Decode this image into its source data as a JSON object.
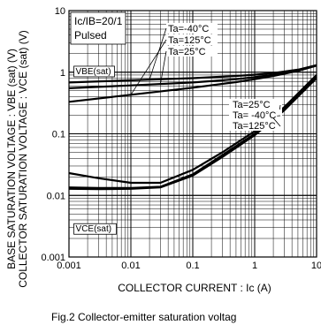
{
  "chart_data": {
    "type": "line",
    "caption": "Fig.2 Collector-emitter saturation voltag",
    "xlabel": "COLLECTOR  CURRENT : Ic (A)",
    "ylabel_line1": "COLLECTOR  SATURATION  VOLTAGE : VCE (sat) (V)",
    "ylabel_line2": "BASE  SATURATION  VOLTAGE : VBE (sat) (V)",
    "x_scale": "log",
    "y_scale": "log",
    "xlim": [
      0.001,
      10
    ],
    "ylim": [
      0.001,
      10
    ],
    "x_ticks": [
      {
        "v": 0.001,
        "label": "0.001"
      },
      {
        "v": 0.01,
        "label": "0.01"
      },
      {
        "v": 0.1,
        "label": "0.1"
      },
      {
        "v": 1,
        "label": "1"
      },
      {
        "v": 10,
        "label": "10"
      }
    ],
    "y_ticks": [
      {
        "v": 0.001,
        "label": "0.001"
      },
      {
        "v": 0.01,
        "label": "0.01"
      },
      {
        "v": 0.1,
        "label": "0.1"
      },
      {
        "v": 1,
        "label": "1"
      },
      {
        "v": 10,
        "label": "10"
      }
    ],
    "grid": true,
    "conditions": [
      "Ic/IB=20/1",
      "Pulsed"
    ],
    "group_labels": [
      {
        "text": "VBE(sat)",
        "x": 0.0012,
        "y": 0.9
      },
      {
        "text": "VCE(sat)",
        "x": 0.0012,
        "y": 0.0025
      }
    ],
    "series": [
      {
        "group": "VBE(sat)",
        "name": "Ta=-40°C",
        "x": [
          0.001,
          0.01,
          0.1,
          0.5,
          1,
          2,
          5,
          10
        ],
        "y": [
          0.68,
          0.74,
          0.8,
          0.87,
          0.91,
          0.97,
          1.1,
          1.3
        ]
      },
      {
        "group": "VBE(sat)",
        "name": "Ta=125°C",
        "x": [
          0.001,
          0.01,
          0.1,
          0.5,
          1,
          2,
          5,
          10
        ],
        "y": [
          0.33,
          0.43,
          0.56,
          0.69,
          0.77,
          0.87,
          1.05,
          1.28
        ]
      },
      {
        "group": "VBE(sat)",
        "name": "Ta=25°C",
        "x": [
          0.001,
          0.01,
          0.1,
          0.5,
          1,
          2,
          5,
          10
        ],
        "y": [
          0.55,
          0.61,
          0.68,
          0.77,
          0.83,
          0.91,
          1.07,
          1.3
        ]
      },
      {
        "group": "VCE(sat)",
        "name": "Ta=25°C",
        "x": [
          0.001,
          0.003,
          0.01,
          0.03,
          0.1,
          0.3,
          1,
          3,
          10
        ],
        "y": [
          0.0135,
          0.0132,
          0.0132,
          0.0138,
          0.022,
          0.045,
          0.1,
          0.25,
          0.85
        ]
      },
      {
        "group": "VCE(sat)",
        "name": "Ta=-40°C",
        "x": [
          0.001,
          0.003,
          0.01,
          0.03,
          0.1,
          0.3,
          1,
          3,
          10
        ],
        "y": [
          0.0128,
          0.0126,
          0.0128,
          0.0135,
          0.021,
          0.042,
          0.095,
          0.24,
          0.8
        ]
      },
      {
        "group": "VCE(sat)",
        "name": "Ta=125°C",
        "x": [
          0.001,
          0.003,
          0.01,
          0.03,
          0.1,
          0.3,
          1,
          3,
          10
        ],
        "y": [
          0.023,
          0.019,
          0.016,
          0.016,
          0.026,
          0.05,
          0.11,
          0.27,
          0.9
        ]
      }
    ],
    "legend_upper": [
      "Ta=-40°C",
      "Ta=125°C",
      "Ta=25°C"
    ],
    "legend_lower": [
      "Ta=25°C",
      "Ta= -40°C",
      "Ta=125°C"
    ]
  }
}
